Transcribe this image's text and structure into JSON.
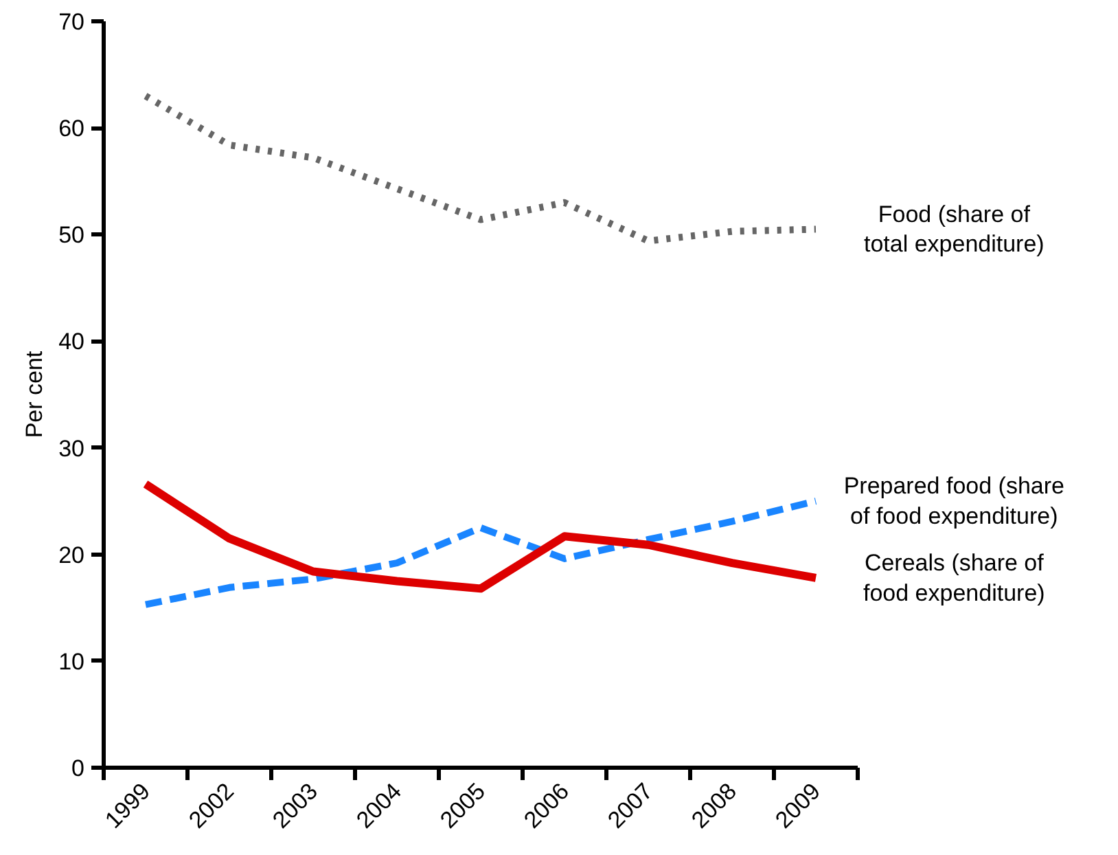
{
  "chart_data": {
    "type": "line",
    "ylabel": "Per cent",
    "categories": [
      "1999",
      "2002",
      "2003",
      "2004",
      "2005",
      "2006",
      "2007",
      "2008",
      "2009"
    ],
    "ylim": [
      0,
      70
    ],
    "yticks": [
      0,
      10,
      20,
      30,
      40,
      50,
      60,
      70
    ],
    "grid": false,
    "series": [
      {
        "name": "Food (share of total expenditure)",
        "color": "#666666",
        "line_style": "dotted",
        "values": [
          63.0,
          58.4,
          57.2,
          54.3,
          51.4,
          53.0,
          49.4,
          50.3,
          50.5
        ]
      },
      {
        "name": "Prepared food (share of food expenditure)",
        "color": "#1a85ff",
        "line_style": "dashed",
        "values": [
          15.3,
          16.9,
          17.7,
          19.2,
          22.5,
          19.6,
          21.4,
          23.1,
          25.0
        ]
      },
      {
        "name": "Cereals (share of food expenditure)",
        "color": "#dd0000",
        "line_style": "solid",
        "values": [
          26.6,
          21.5,
          18.4,
          17.5,
          16.8,
          21.7,
          20.9,
          19.2,
          17.8
        ]
      }
    ]
  }
}
